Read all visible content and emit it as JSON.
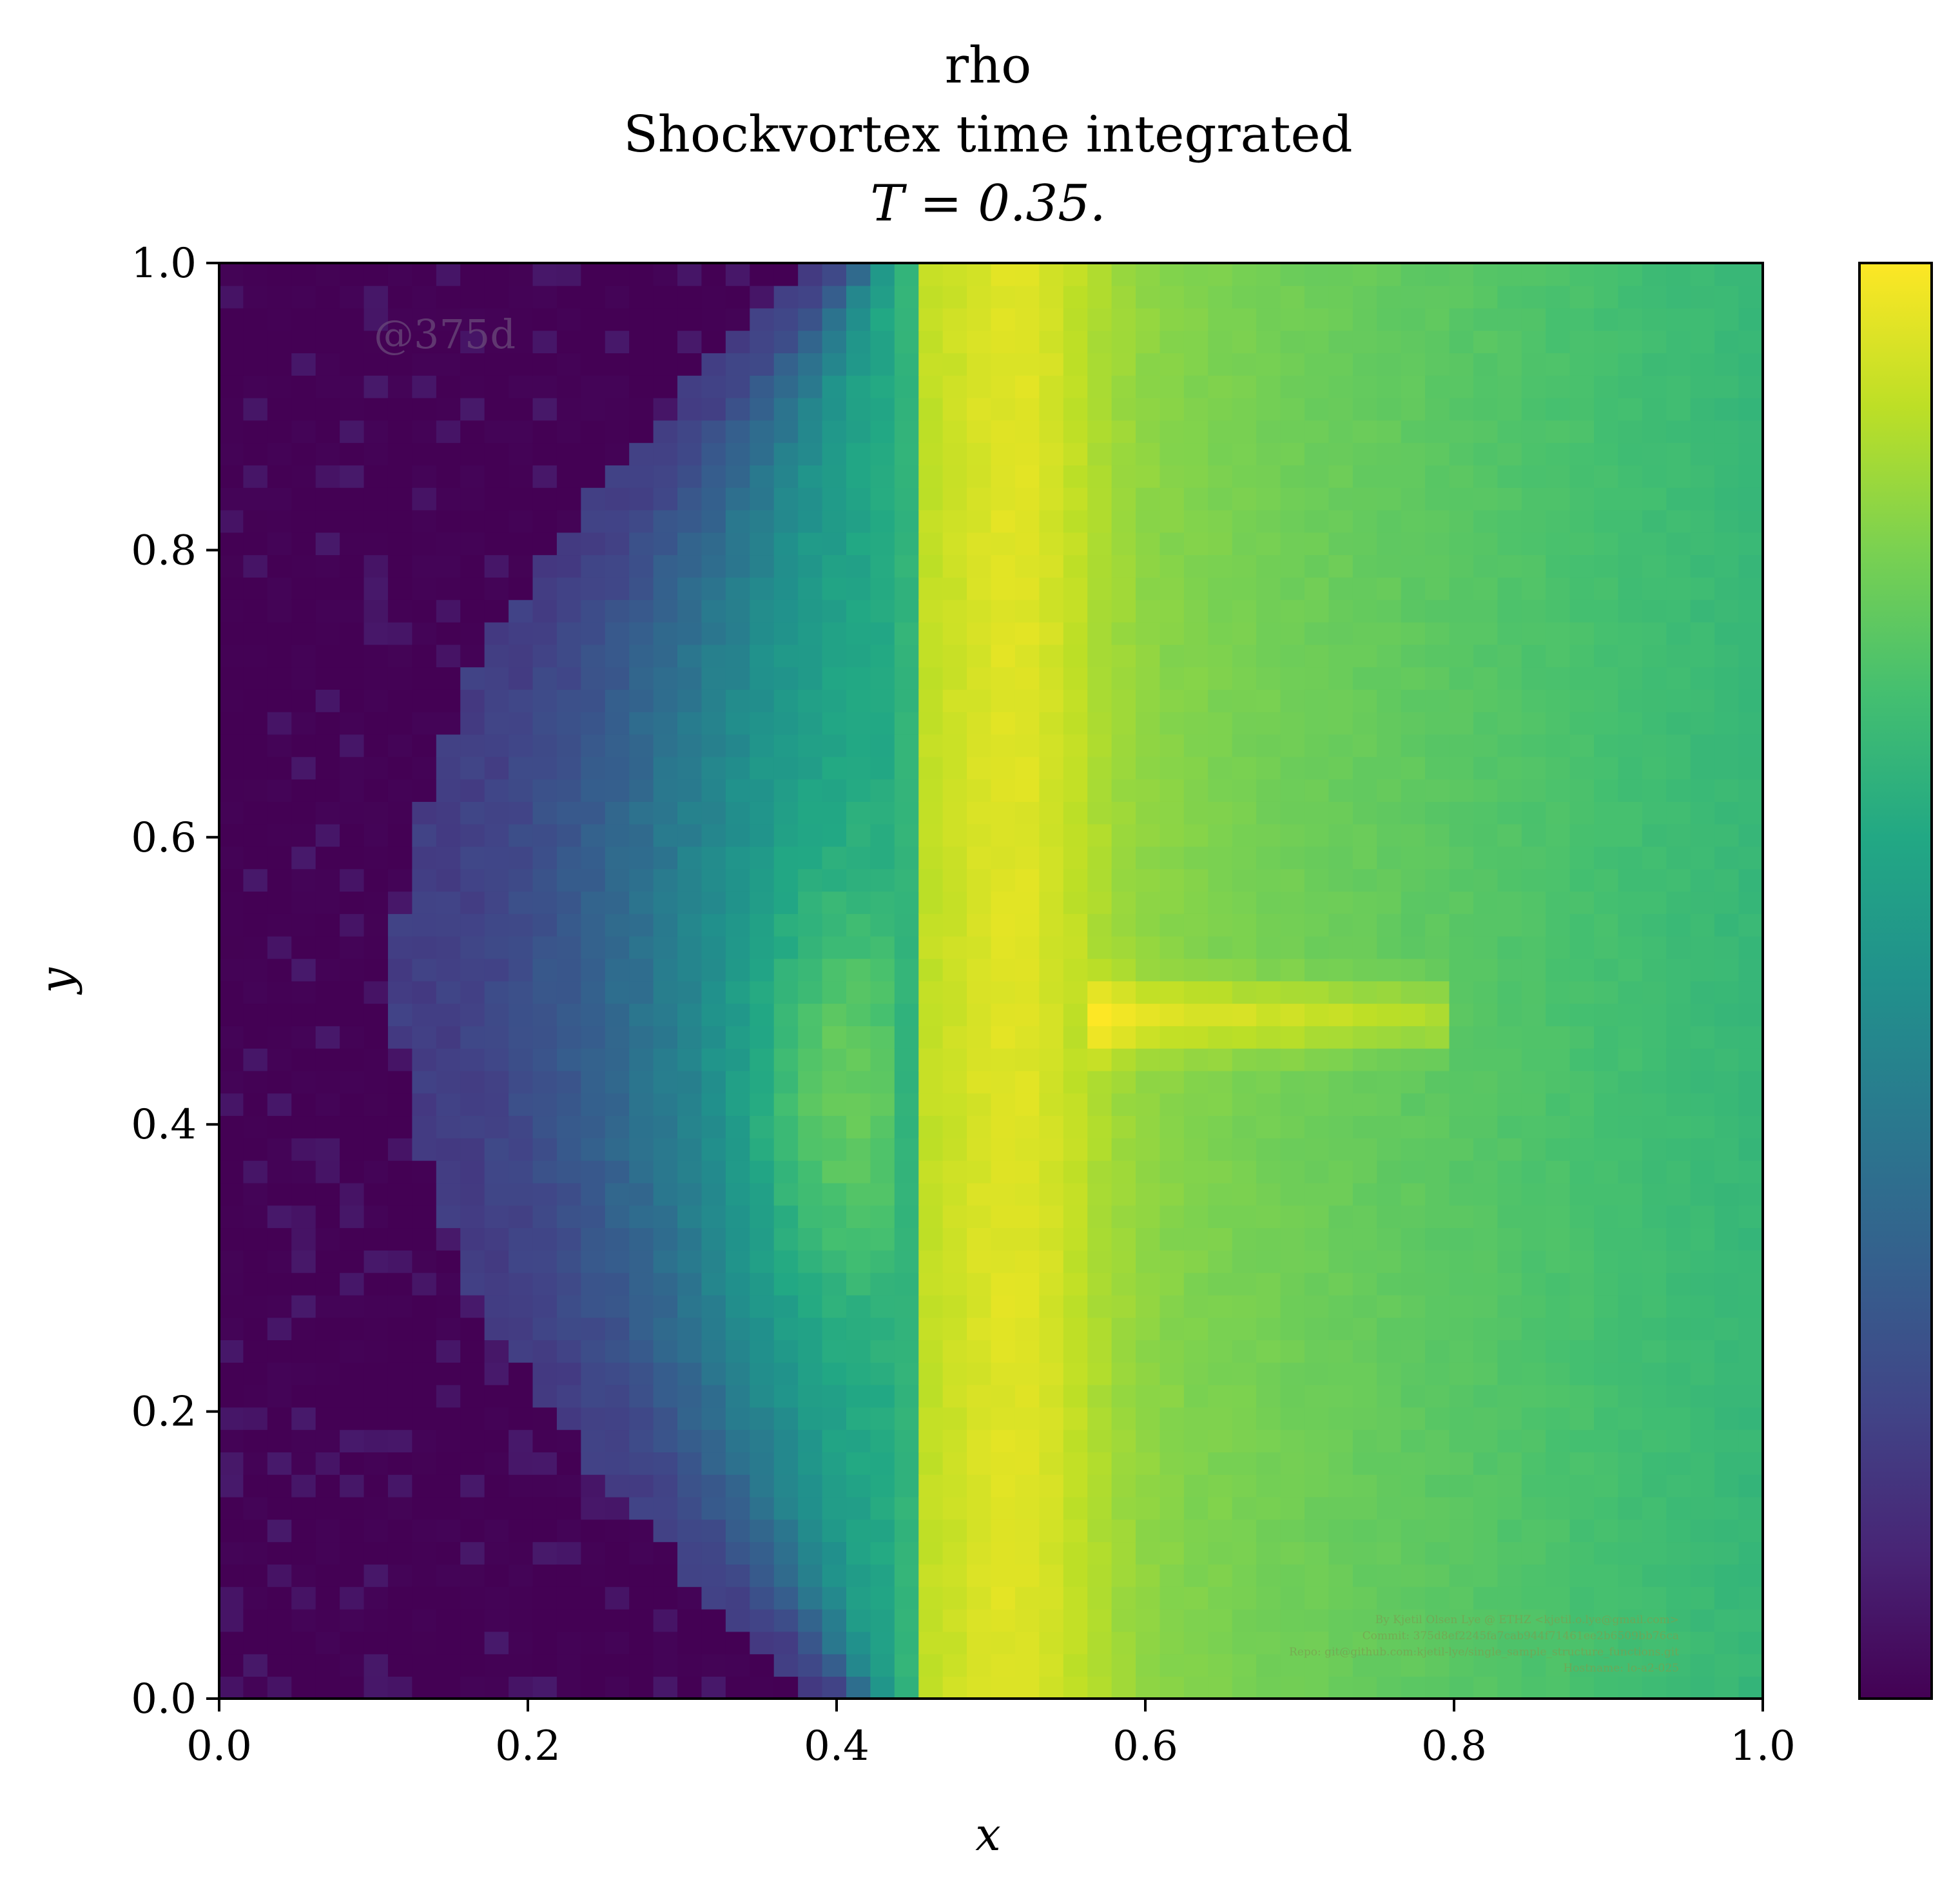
{
  "chart_data": {
    "type": "heatmap",
    "title_lines": [
      "rho",
      "Shockvortex time integrated",
      "T = 0.35."
    ],
    "xlabel": "x",
    "ylabel": "y",
    "xlim": [
      0.0,
      1.0
    ],
    "ylim": [
      0.0,
      1.0
    ],
    "x_ticks": [
      "0.0",
      "0.2",
      "0.4",
      "0.6",
      "0.8",
      "1.0"
    ],
    "y_ticks": [
      "0.0",
      "0.2",
      "0.4",
      "0.6",
      "0.8",
      "1.0"
    ],
    "colormap": "viridis",
    "colorbar": "right, no tick labels",
    "grid_resolution": [
      64,
      64
    ],
    "value_range": [
      0.0,
      1.0
    ],
    "field_description": "normalized density: low (purple) upstream of a curved shock at x≈0.1–0.3, teal region between shock and contact at x≈0.44, bright yellow band near x≈0.5–0.6, horizontal bright streak at y≈0.47 from x≈0.57 to 0.8, green toward right edge",
    "watermark": "@375d",
    "footer_lines": [
      "By Kjetil Olsen Lye @ ETHZ <kjetil.o.lye@gmail.com>",
      "Commit: 375d8ef2245fa7cab944f71461ee2b6509bb76ca",
      "Repo: git@github.com:kjetil-lye/single_sample_structure_functions.git",
      "Hostname: lo-a2-025"
    ],
    "grid": false
  }
}
